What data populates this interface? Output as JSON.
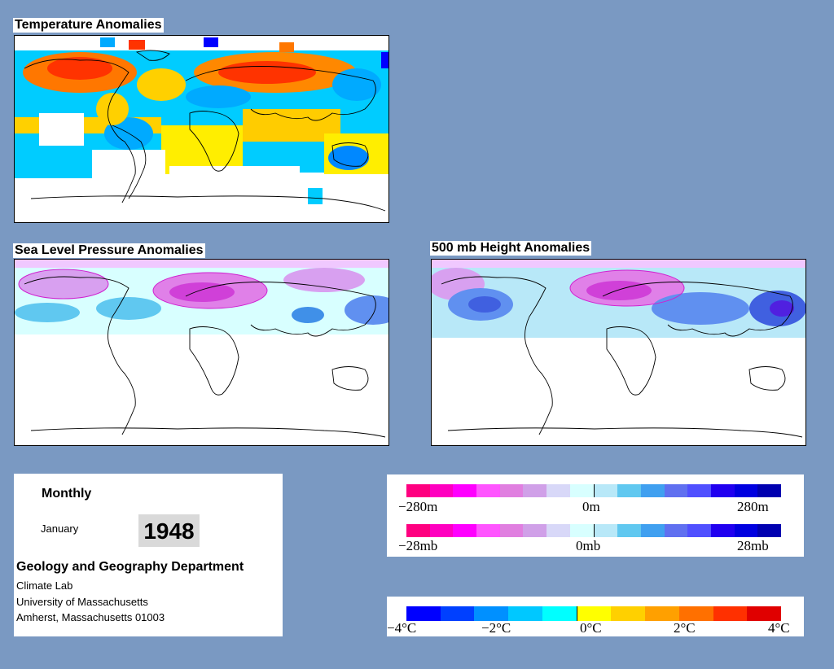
{
  "panels": {
    "temperature": {
      "title": "Temperature Anomalies"
    },
    "slp": {
      "title": "Sea Level Pressure Anomalies"
    },
    "height500": {
      "title": "500 mb Height Anomalies"
    }
  },
  "info": {
    "period": "Monthly",
    "month": "January",
    "year": "1948",
    "department": "Geology and Geography Department",
    "lab": "Climate Lab",
    "university": "University of Massachusetts",
    "address": "Amherst, Massachusetts 01003"
  },
  "legend_height": {
    "min_label": "−280m",
    "mid_label": "0m",
    "max_label": "280m",
    "colors": [
      "#ff0080",
      "#ff00c0",
      "#ff00ff",
      "#ff55ff",
      "#e07fe0",
      "#d0a0e8",
      "#d8d8f8",
      "#d8ffff",
      "#b8e8f8",
      "#60c8f0",
      "#40a0f0",
      "#6070f0",
      "#5050ff",
      "#2000f0",
      "#0000e0",
      "#0000b0"
    ]
  },
  "legend_pressure": {
    "min_label": "−28mb",
    "mid_label": "0mb",
    "max_label": "28mb"
  },
  "legend_temp": {
    "labels": [
      "−4°C",
      "−2°C",
      "0°C",
      "2°C",
      "4°C"
    ],
    "colors": [
      "#0000ff",
      "#0040ff",
      "#0090ff",
      "#00c8ff",
      "#00ffff",
      "#ffff00",
      "#ffd000",
      "#ffa000",
      "#ff7000",
      "#ff3000",
      "#e00000"
    ]
  },
  "colors": {
    "background": "#7a99c2",
    "temp_warm": "#ff8800",
    "temp_cold": "#00aaff",
    "pressure_high": "#ff00ff",
    "pressure_low": "#4060ff"
  }
}
